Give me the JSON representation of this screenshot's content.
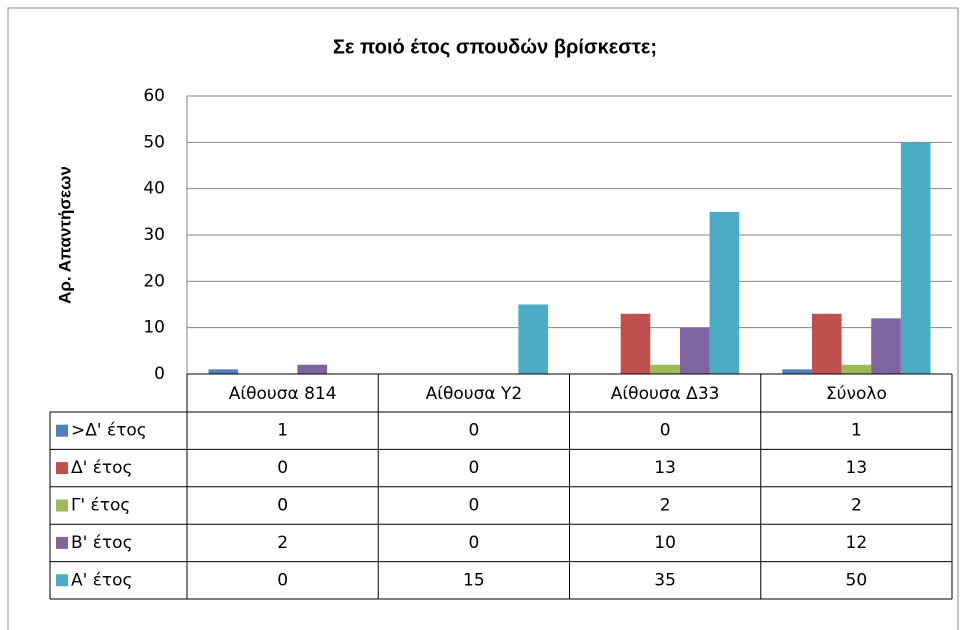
{
  "chart_data": {
    "type": "bar",
    "title": "Σε ποιό έτος σπουδών βρίσκεστε;",
    "y_label": "Αρ. Απαντήσεων",
    "categories": [
      "Αίθουσα 814",
      "Αίθουσα Υ2",
      "Αίθουσα Δ33",
      "Σύνολο"
    ],
    "series": [
      {
        "name": ">Δ' έτος",
        "color": "#4f81bd",
        "values": [
          1,
          0,
          0,
          1
        ]
      },
      {
        "name": "Δ' έτος",
        "color": "#c0504d",
        "values": [
          0,
          0,
          13,
          13
        ]
      },
      {
        "name": "Γ' έτος",
        "color": "#9bbb59",
        "values": [
          0,
          0,
          2,
          2
        ]
      },
      {
        "name": "Β' έτος",
        "color": "#8064a2",
        "values": [
          2,
          0,
          10,
          12
        ]
      },
      {
        "name": "Α' έτος",
        "color": "#4bacc6",
        "values": [
          0,
          15,
          35,
          50
        ]
      }
    ],
    "ylim": [
      0,
      60
    ],
    "yticks": [
      0,
      10,
      20,
      30,
      40,
      50,
      60
    ],
    "grid": true,
    "data_table": true
  }
}
